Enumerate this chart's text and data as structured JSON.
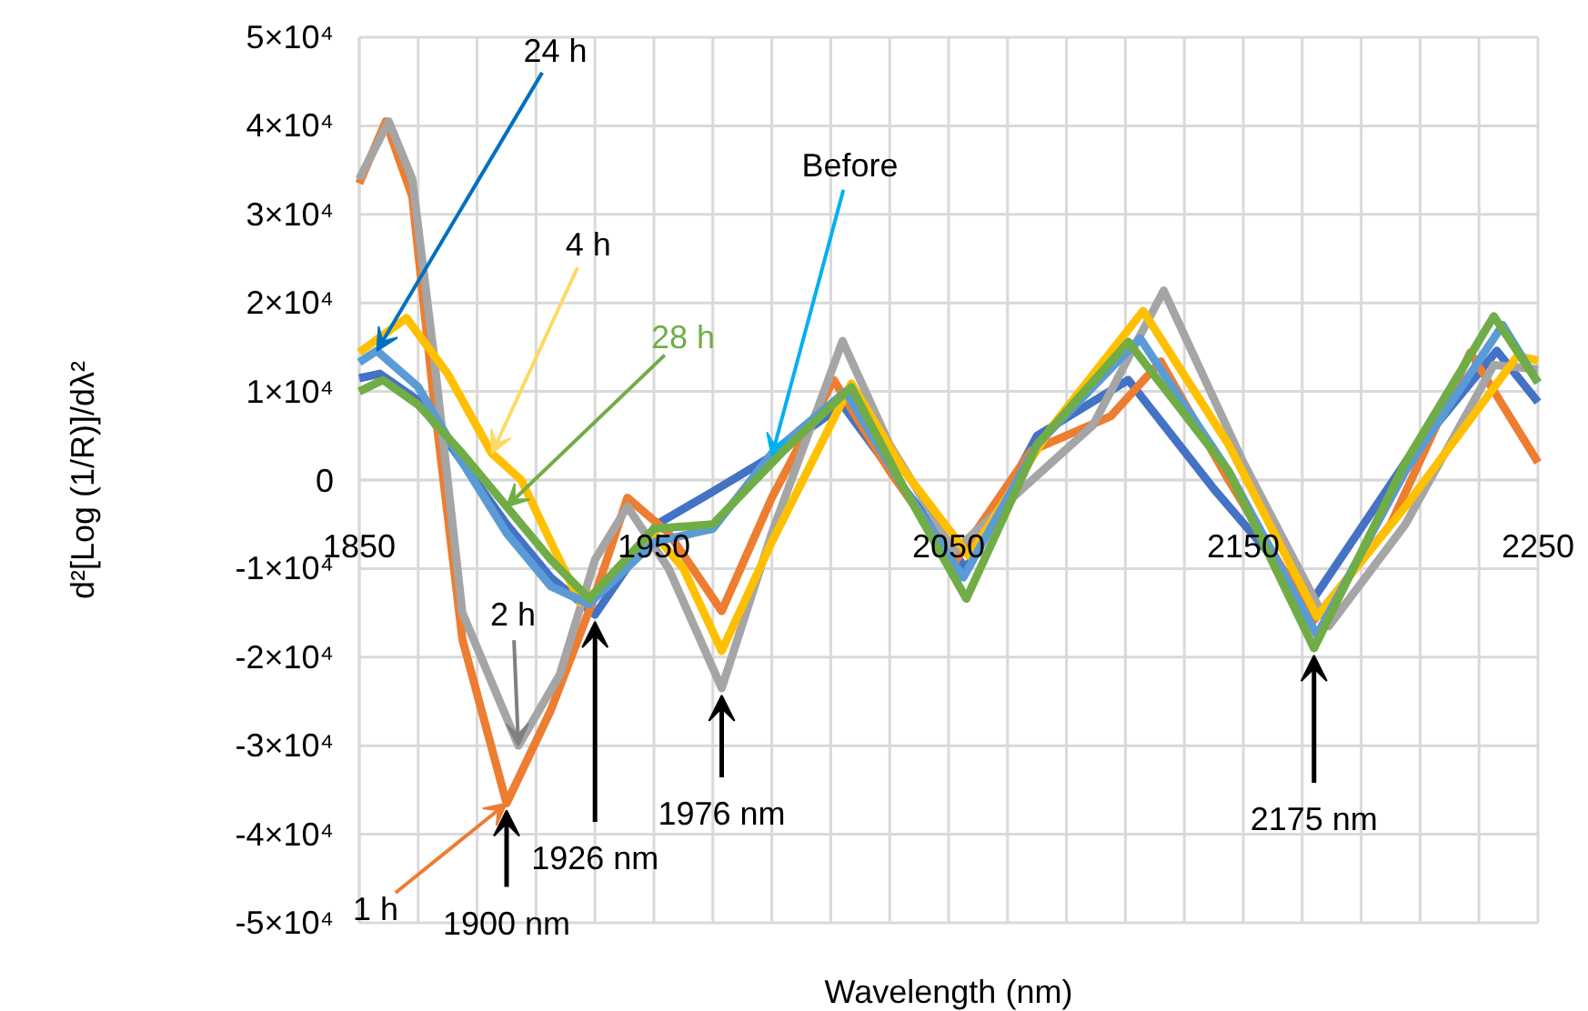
{
  "chart_data": {
    "type": "line",
    "xlabel": "Wavelength (nm)",
    "ylabel": "d²[Log (1/R)]/dλ²",
    "xlim": [
      1850,
      2250
    ],
    "ylim": [
      -50000,
      50000
    ],
    "xticks": [
      1850,
      {
        "value": 1870,
        "label": null
      },
      {
        "value": 1890,
        "label": null
      },
      {
        "value": 1910,
        "label": null
      },
      {
        "value": 1930,
        "label": null
      },
      1950,
      {
        "value": 1970,
        "label": null
      },
      {
        "value": 1990,
        "label": null
      },
      {
        "value": 2010,
        "label": null
      },
      {
        "value": 2030,
        "label": null
      },
      2050,
      {
        "value": 2070,
        "label": null
      },
      {
        "value": 2090,
        "label": null
      },
      {
        "value": 2110,
        "label": null
      },
      {
        "value": 2130,
        "label": null
      },
      2150,
      {
        "value": 2170,
        "label": null
      },
      {
        "value": 2190,
        "label": null
      },
      {
        "value": 2210,
        "label": null
      },
      {
        "value": 2230,
        "label": null
      },
      2250
    ],
    "yticks": [
      {
        "value": -50000,
        "label": "-5×10⁴"
      },
      {
        "value": -40000,
        "label": "-4×10⁴"
      },
      {
        "value": -30000,
        "label": "-3×10⁴"
      },
      {
        "value": -20000,
        "label": "-2×10⁴"
      },
      {
        "value": -10000,
        "label": "-1×10⁴"
      },
      0,
      {
        "value": 10000,
        "label": "1×10⁴"
      },
      {
        "value": 20000,
        "label": "2×10⁴"
      },
      {
        "value": 30000,
        "label": "3×10⁴"
      },
      {
        "value": 40000,
        "label": "4×10⁴"
      },
      {
        "value": 50000,
        "label": "5×10⁴"
      }
    ],
    "grid": true,
    "series": [
      {
        "name": "Before",
        "color": "#4472c4",
        "x": [
          1850,
          1857,
          1870,
          1885,
          1900,
          1915,
          1930,
          1951,
          1969,
          1990,
          2014,
          2035,
          2056,
          2080,
          2111,
          2140,
          2173,
          2205,
          2236,
          2250
        ],
        "values": [
          11500,
          12000,
          9000,
          2000,
          -5000,
          -11000,
          -15200,
          -5000,
          -1500,
          2700,
          8500,
          -1000,
          -10000,
          5000,
          11300,
          -1000,
          -13800,
          2000,
          14600,
          8800
        ]
      },
      {
        "name": "1 h",
        "color": "#ed7d31",
        "x": [
          1850,
          1859,
          1868,
          1875,
          1885,
          1900,
          1915,
          1930,
          1941,
          1955,
          1973,
          1990,
          2011,
          2030,
          2052,
          2078,
          2105,
          2122,
          2145,
          2174,
          2200,
          2227,
          2250
        ],
        "values": [
          33500,
          40500,
          32000,
          10000,
          -18000,
          -36500,
          -26000,
          -13000,
          -2000,
          -6000,
          -14800,
          -2000,
          11300,
          1000,
          -9300,
          3300,
          7200,
          13400,
          0,
          -15800,
          -5000,
          14400,
          2000
        ]
      },
      {
        "name": "2 h",
        "color": "#a5a5a5",
        "x": [
          1850,
          1860,
          1868,
          1875,
          1885,
          1904,
          1918,
          1930,
          1941,
          1955,
          1973,
          1990,
          2014,
          2030,
          2052,
          2075,
          2099,
          2123,
          2150,
          2179,
          2205,
          2235,
          2250
        ],
        "values": [
          34000,
          40500,
          34000,
          15000,
          -15000,
          -30000,
          -22000,
          -9000,
          -3000,
          -10000,
          -23500,
          -6000,
          15700,
          4000,
          -8000,
          -1000,
          6200,
          21400,
          2000,
          -16500,
          -5000,
          13000,
          12500
        ]
      },
      {
        "name": "4 h",
        "color": "#ffc000",
        "x": [
          1850,
          1866,
          1880,
          1895,
          1905,
          1915,
          1925,
          1935,
          1950,
          1960,
          1973,
          1990,
          2017,
          2035,
          2057,
          2085,
          2116,
          2145,
          2175,
          2205,
          2243,
          2250
        ],
        "values": [
          14400,
          18300,
          12000,
          3000,
          0,
          -7000,
          -13800,
          -11500,
          -6000,
          -10000,
          -19300,
          -7000,
          10900,
          1000,
          -8600,
          6000,
          19100,
          4000,
          -15400,
          -3000,
          14000,
          13500
        ]
      },
      {
        "name": "24 h",
        "color": "#5b9bd5",
        "x": [
          1850,
          1856,
          1870,
          1885,
          1900,
          1915,
          1928,
          1950,
          1970,
          1990,
          2015,
          2035,
          2055,
          2080,
          2115,
          2145,
          2175,
          2205,
          2238,
          2250
        ],
        "values": [
          13300,
          14600,
          10500,
          2000,
          -6000,
          -12000,
          -14000,
          -7000,
          -5500,
          3000,
          10000,
          -1000,
          -11000,
          4000,
          16000,
          1000,
          -17500,
          1000,
          17500,
          11000
        ]
      },
      {
        "name": "28 h",
        "color": "#70ad47",
        "x": [
          1850,
          1858,
          1870,
          1885,
          1900,
          1915,
          1928,
          1950,
          1970,
          1994,
          2017,
          2035,
          2056,
          2080,
          2111,
          2145,
          2174,
          2205,
          2235,
          2250
        ],
        "values": [
          10000,
          11300,
          8500,
          3000,
          -3000,
          -9000,
          -13400,
          -5500,
          -5000,
          3300,
          10500,
          -1000,
          -13400,
          4000,
          15600,
          1000,
          -19000,
          2000,
          18500,
          11000
        ]
      }
    ],
    "annotations": [
      {
        "text": "1900 nm",
        "x": 1900,
        "y": -36500
      },
      {
        "text": "1926 nm",
        "x": 1930,
        "y": -15200
      },
      {
        "text": "1976 nm",
        "x": 1973,
        "y": -23500
      },
      {
        "text": "2175 nm",
        "x": 2174,
        "y": -19000
      }
    ]
  }
}
